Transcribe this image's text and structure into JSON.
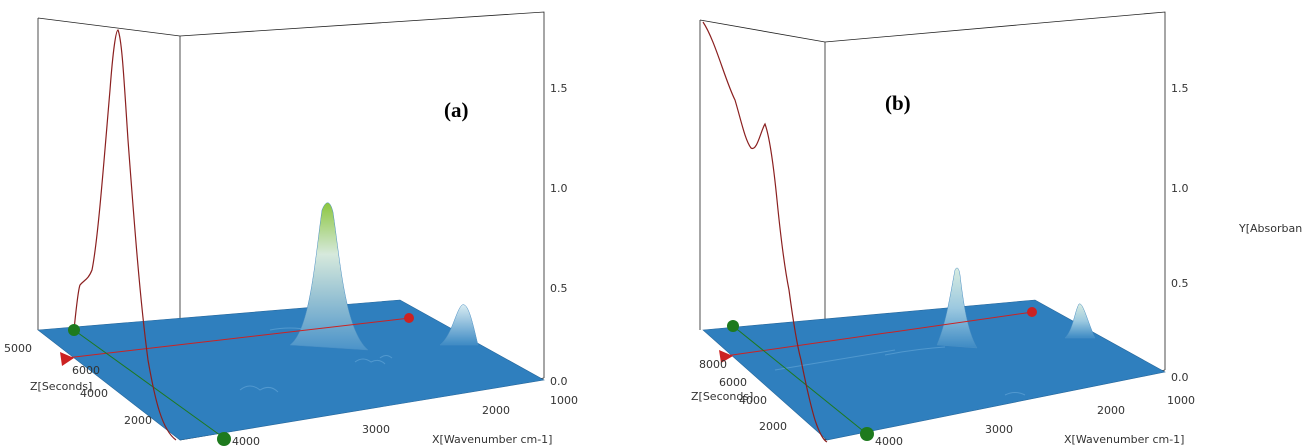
{
  "chart_data": [
    {
      "type": "surface3d",
      "panel_label": "(a)",
      "xlabel": "X[Wavenumber cm-1]",
      "ylabel": "",
      "zlabel": "Z[Seconds]",
      "y_ticks": [
        "0.0",
        "0.5",
        "1.0",
        "1.5"
      ],
      "x_ticks": [
        "4000",
        "3000",
        "2000",
        "1000"
      ],
      "z_ticks": [
        "6000",
        "4000",
        "2000"
      ],
      "surface_peaks": [
        {
          "wavenumber": 2350,
          "absorbance": 1.2
        },
        {
          "wavenumber": 1230,
          "absorbance": 0.5
        }
      ],
      "colors": {
        "surface": "#2f7fbe",
        "peak_top": "#7bc043",
        "trace": "#8b2020",
        "cursor_line": "#cc2222",
        "marker_green": "#1e7a1e",
        "marker_red": "#cc2222"
      }
    },
    {
      "type": "surface3d",
      "panel_label": "(b)",
      "xlabel": "X[Wavenumber cm-1]",
      "ylabel": "Y[Absorban",
      "zlabel": "Z[Seconds]",
      "y_ticks": [
        "0.0",
        "0.5",
        "1.0",
        "1.5"
      ],
      "x_ticks": [
        "4000",
        "3000",
        "2000",
        "1000"
      ],
      "z_ticks": [
        "8000",
        "6000",
        "4000",
        "2000"
      ],
      "surface_peaks": [
        {
          "wavenumber": 2350,
          "absorbance": 0.6
        },
        {
          "wavenumber": 1230,
          "absorbance": 0.3
        }
      ],
      "colors": {
        "surface": "#2f7fbe",
        "peak_top": "#cfe8cf",
        "trace": "#8b2020",
        "cursor_line": "#cc2222",
        "marker_green": "#1e7a1e",
        "marker_red": "#cc2222"
      }
    }
  ]
}
